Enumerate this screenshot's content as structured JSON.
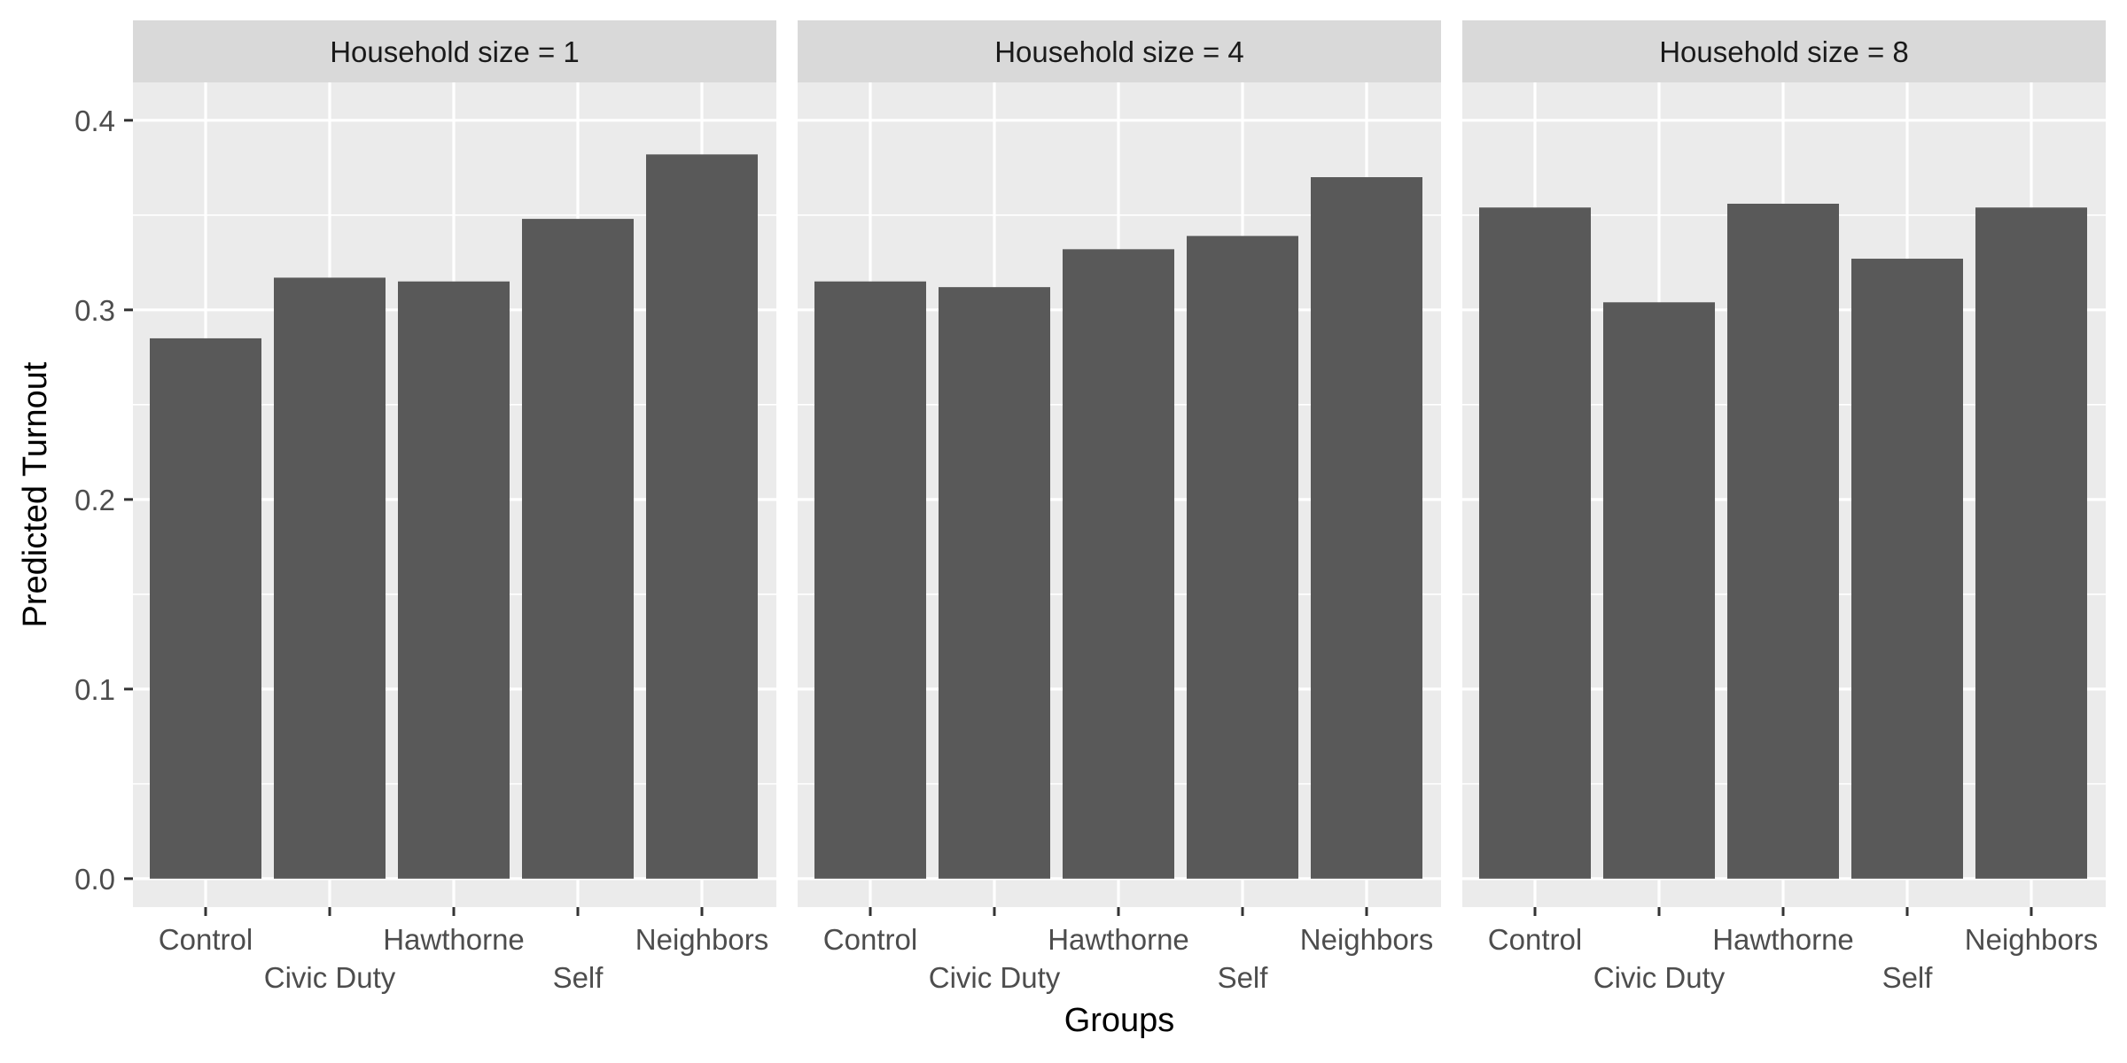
{
  "chart_data": {
    "type": "bar",
    "xlabel": "Groups",
    "ylabel": "Predicted Turnout",
    "ylim": [
      -0.015,
      0.42
    ],
    "yticks": [
      0.0,
      0.1,
      0.2,
      0.3,
      0.4
    ],
    "ytick_labels": [
      "0.0",
      "0.1",
      "0.2",
      "0.3",
      "0.4"
    ],
    "grid": true,
    "categories": [
      "Control",
      "Civic Duty",
      "Hawthorne",
      "Self",
      "Neighbors"
    ],
    "panels": [
      {
        "strip_label": "Household size = 1",
        "values": [
          0.285,
          0.317,
          0.315,
          0.348,
          0.382
        ]
      },
      {
        "strip_label": "Household size = 4",
        "values": [
          0.315,
          0.312,
          0.332,
          0.339,
          0.37
        ]
      },
      {
        "strip_label": "Household size = 8",
        "values": [
          0.354,
          0.304,
          0.356,
          0.327,
          0.354
        ]
      }
    ],
    "colors": {
      "bar": "#595959",
      "panel_bg": "#ebebeb",
      "strip_bg": "#d9d9d9",
      "grid": "#ffffff",
      "text": "#4d4d4d",
      "title_text": "#000000"
    }
  }
}
